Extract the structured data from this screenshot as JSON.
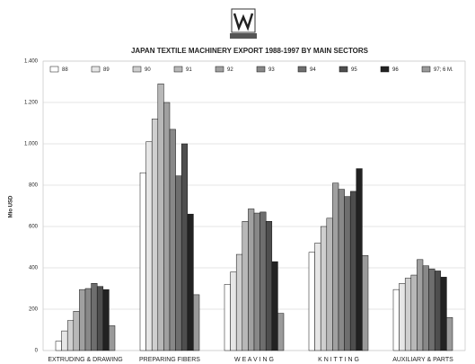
{
  "chart_data": {
    "type": "bar",
    "title": "JAPAN TEXTILE MACHINERY EXPORT 1988-1997 BY MAIN SECTORS",
    "y_label": "Mio USD",
    "categories": [
      "EXTRUDING & DRAWING",
      "PREPARING FIBERS",
      "W E A V I N G",
      "K N I T T I N G",
      "AUXILIARY & PARTS"
    ],
    "series": [
      {
        "name": "88",
        "color": "#ffffff",
        "values": [
          45,
          860,
          320,
          475,
          295
        ]
      },
      {
        "name": "89",
        "color": "#e6e6e6",
        "values": [
          95,
          1010,
          380,
          520,
          325
        ]
      },
      {
        "name": "90",
        "color": "#cfcfcf",
        "values": [
          145,
          1120,
          465,
          600,
          350
        ]
      },
      {
        "name": "91",
        "color": "#b8b8b8",
        "values": [
          190,
          1290,
          625,
          640,
          365
        ]
      },
      {
        "name": "92",
        "color": "#a0a0a0",
        "values": [
          295,
          1200,
          685,
          810,
          440
        ]
      },
      {
        "name": "93",
        "color": "#888888",
        "values": [
          300,
          1070,
          665,
          780,
          410
        ]
      },
      {
        "name": "94",
        "color": "#6e6e6e",
        "values": [
          325,
          845,
          670,
          745,
          395
        ]
      },
      {
        "name": "95",
        "color": "#4e4e4e",
        "values": [
          310,
          1000,
          625,
          770,
          385
        ]
      },
      {
        "name": "96",
        "color": "#222222",
        "values": [
          295,
          660,
          430,
          880,
          355
        ]
      },
      {
        "name": "97; 6 M.",
        "color": "#9a9a9a",
        "values": [
          120,
          270,
          180,
          460,
          160
        ]
      }
    ],
    "ylim": [
      0,
      1400
    ],
    "yticks": [
      0,
      200,
      400,
      600,
      800,
      {
        "value": 1000,
        "label": "1.000"
      },
      {
        "value": 1200,
        "label": "1.200"
      },
      {
        "value": 1400,
        "label": "1.400"
      }
    ],
    "grid": true
  }
}
